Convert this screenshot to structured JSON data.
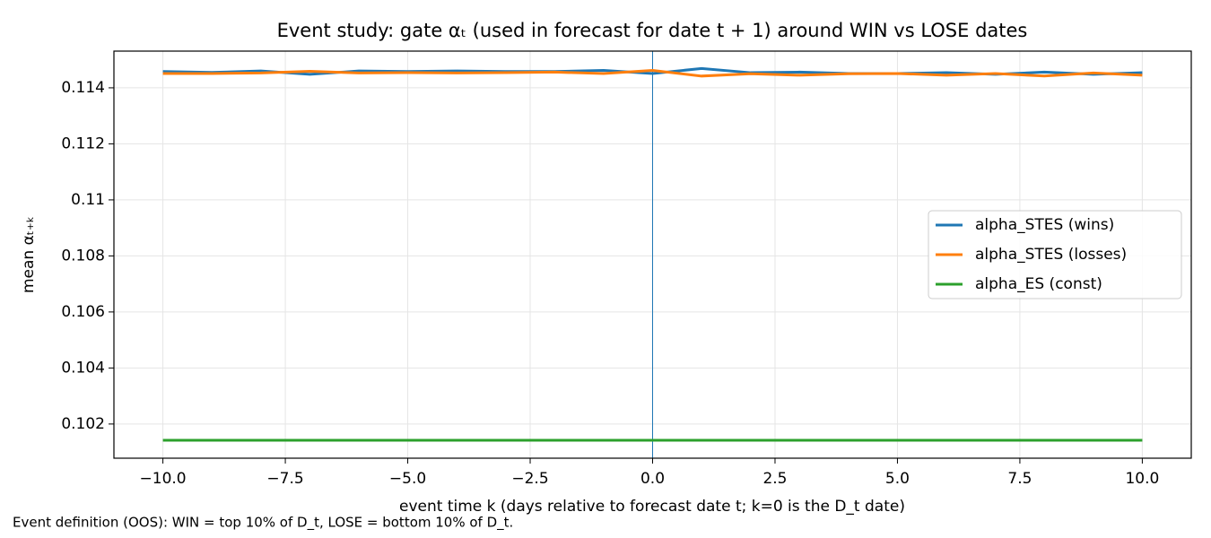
{
  "chart_data": {
    "type": "line",
    "title": "Event study: gate αₜ (used in forecast for date t + 1) around WIN vs LOSE dates",
    "xlabel": "event time k (days relative to forecast date t; k=0 is the D_t date)",
    "ylabel": "mean αₜ₊ₖ",
    "note": "Event definition (OOS): WIN = top 10% of D_t, LOSE = bottom 10% of D_t.",
    "x": [
      -10,
      -9,
      -8,
      -7,
      -6,
      -5,
      -4,
      -3,
      -2,
      -1,
      0,
      1,
      2,
      3,
      4,
      5,
      6,
      7,
      8,
      9,
      10
    ],
    "series": [
      {
        "name": "alpha_STES (wins)",
        "color": "#1f77b4",
        "values": [
          0.11458,
          0.11455,
          0.1146,
          0.11448,
          0.1146,
          0.11458,
          0.1146,
          0.11458,
          0.11458,
          0.11462,
          0.11451,
          0.11469,
          0.11454,
          0.11456,
          0.11451,
          0.11451,
          0.11454,
          0.11448,
          0.11456,
          0.11448,
          0.11454
        ]
      },
      {
        "name": "alpha_STES (losses)",
        "color": "#ff7f0e",
        "values": [
          0.11451,
          0.11451,
          0.11453,
          0.11459,
          0.11453,
          0.11454,
          0.11453,
          0.11454,
          0.11456,
          0.11451,
          0.11462,
          0.11442,
          0.1145,
          0.11445,
          0.1145,
          0.11451,
          0.11445,
          0.11451,
          0.11442,
          0.11453,
          0.11445
        ]
      },
      {
        "name": "alpha_ES (const)",
        "color": "#2ca02c",
        "values": [
          0.10142,
          0.10142,
          0.10142,
          0.10142,
          0.10142,
          0.10142,
          0.10142,
          0.10142,
          0.10142,
          0.10142,
          0.10142,
          0.10142,
          0.10142,
          0.10142,
          0.10142,
          0.10142,
          0.10142,
          0.10142,
          0.10142,
          0.10142,
          0.10142
        ]
      }
    ],
    "vline": 0,
    "vline_color": "#1f77b4",
    "xlim": [
      -11,
      11
    ],
    "ylim": [
      0.10078,
      0.11531
    ],
    "xticks": [
      {
        "value": -10,
        "label": "−10.0"
      },
      {
        "value": -7.5,
        "label": "−7.5"
      },
      {
        "value": -5,
        "label": "−5.0"
      },
      {
        "value": -2.5,
        "label": "−2.5"
      },
      {
        "value": 0,
        "label": "0.0"
      },
      {
        "value": 2.5,
        "label": "2.5"
      },
      {
        "value": 5,
        "label": "5.0"
      },
      {
        "value": 7.5,
        "label": "7.5"
      },
      {
        "value": 10,
        "label": "10.0"
      }
    ],
    "yticks": [
      0.102,
      0.104,
      0.106,
      0.108,
      0.11,
      0.112,
      0.114
    ],
    "grid": true,
    "legend": "center right"
  }
}
